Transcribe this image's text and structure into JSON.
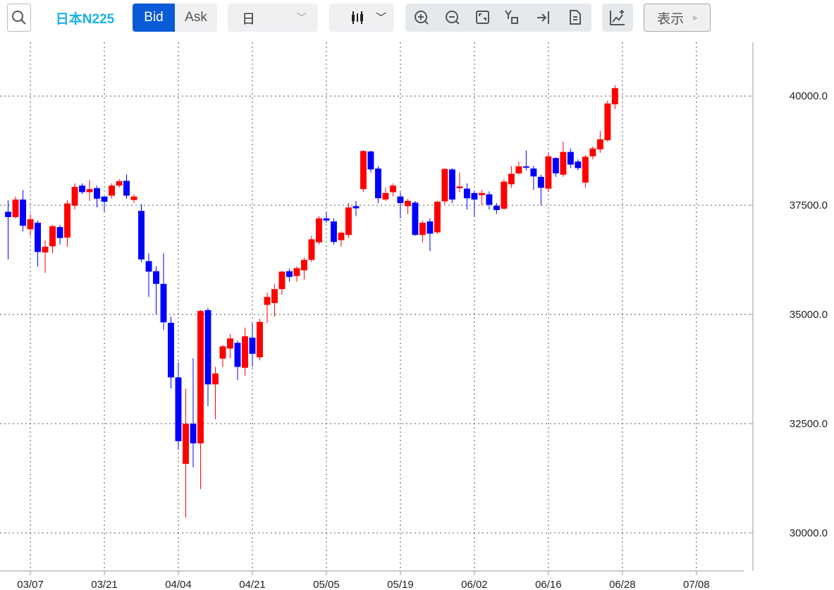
{
  "toolbar": {
    "symbol": "日本N225",
    "bid": "Bid",
    "ask": "Ask",
    "period": "日",
    "display": "表示"
  },
  "chart_data": {
    "type": "candlestick",
    "x": [
      0,
      1,
      2,
      3,
      4,
      5,
      6,
      7,
      8,
      9,
      10,
      11,
      12,
      13,
      14,
      15,
      16,
      17,
      18,
      19,
      20,
      21,
      22,
      23,
      24,
      25,
      26,
      27,
      28,
      29,
      30,
      31,
      32,
      33,
      34,
      35,
      36,
      37,
      38,
      39,
      40,
      41,
      42,
      43,
      44,
      45,
      46,
      47,
      48,
      49,
      50,
      51,
      52,
      53,
      54,
      55,
      56,
      57,
      58,
      59,
      60,
      61,
      62,
      63,
      64,
      65,
      66,
      67,
      68,
      69,
      70,
      71,
      72,
      73,
      74,
      75,
      76,
      77,
      78,
      79,
      80,
      81,
      82
    ],
    "open": [
      37350,
      37230,
      37630,
      36950,
      37100,
      36420,
      36560,
      37000,
      36760,
      37490,
      37950,
      37800,
      37890,
      37700,
      37720,
      37950,
      38060,
      37620,
      37370,
      36220,
      35990,
      35700,
      34810,
      33560,
      31580,
      32500,
      32050,
      35100,
      33400,
      33990,
      34220,
      34350,
      33780,
      34470,
      34020,
      35220,
      35260,
      35580,
      35990,
      35880,
      36010,
      36250,
      36650,
      37200,
      37130,
      36700,
      36820,
      37480,
      37870,
      38730,
      38340,
      37630,
      37800,
      37700,
      37480,
      37560,
      36820,
      37130,
      36880,
      37590,
      38320,
      37890,
      37880,
      37780,
      37730,
      37750,
      37490,
      37420,
      37980,
      38230,
      38390,
      38340,
      38150,
      37880,
      38580,
      38200,
      38720,
      38500,
      38020,
      38620,
      38780,
      38990,
      39810
    ],
    "high": [
      37610,
      37700,
      37850,
      37300,
      37150,
      36700,
      37050,
      37050,
      37620,
      38000,
      38000,
      38080,
      37950,
      37700,
      38000,
      38100,
      38200,
      37750,
      37520,
      36400,
      36100,
      36400,
      34950,
      33900,
      33300,
      34000,
      35100,
      35150,
      33800,
      34300,
      34550,
      34400,
      34700,
      34800,
      34900,
      35500,
      35700,
      36000,
      36050,
      36100,
      36300,
      36800,
      37250,
      37350,
      37200,
      36900,
      37550,
      37600,
      38760,
      38750,
      38400,
      37900,
      38000,
      37800,
      37650,
      37600,
      37150,
      37200,
      37600,
      38350,
      38350,
      38250,
      38000,
      37820,
      37850,
      37820,
      37550,
      38100,
      38400,
      38500,
      38750,
      38400,
      38200,
      38700,
      38600,
      38950,
      38800,
      38550,
      38650,
      38850,
      39200,
      39900,
      40250
    ],
    "low": [
      36260,
      37200,
      36900,
      36800,
      36100,
      35950,
      36400,
      36600,
      36550,
      37400,
      37750,
      37600,
      37450,
      37350,
      37650,
      37900,
      37650,
      37550,
      36200,
      35400,
      35000,
      34650,
      33300,
      31900,
      30350,
      31500,
      31000,
      32900,
      32600,
      33800,
      34000,
      33500,
      33600,
      33800,
      33950,
      34800,
      34950,
      35450,
      35750,
      35750,
      35800,
      36200,
      36600,
      37100,
      36600,
      36550,
      36750,
      37250,
      37800,
      38250,
      37550,
      37600,
      37700,
      37200,
      37300,
      36800,
      36650,
      36450,
      36850,
      37520,
      37550,
      37800,
      37400,
      37250,
      37500,
      37400,
      37300,
      37400,
      37900,
      38200,
      38300,
      37850,
      37500,
      37800,
      38150,
      38150,
      38350,
      38300,
      37900,
      38550,
      38700,
      38950,
      39700
    ],
    "close": [
      37230,
      37630,
      37030,
      37180,
      36430,
      36550,
      37020,
      36750,
      37540,
      37920,
      37800,
      37870,
      37650,
      37580,
      37950,
      38050,
      37720,
      37700,
      36260,
      35980,
      35700,
      34820,
      33560,
      32100,
      32500,
      32050,
      35080,
      33400,
      33650,
      34270,
      34450,
      33800,
      34500,
      34100,
      34830,
      35400,
      35580,
      35980,
      35860,
      36060,
      36250,
      36720,
      37200,
      37150,
      36660,
      36870,
      37450,
      37430,
      38740,
      38320,
      37660,
      37780,
      37950,
      37550,
      37600,
      36820,
      37100,
      36850,
      37580,
      38330,
      37630,
      37930,
      37660,
      37630,
      37780,
      37510,
      37390,
      38040,
      38220,
      38390,
      38360,
      38160,
      37900,
      38620,
      38230,
      38720,
      38430,
      38350,
      38610,
      38800,
      39010,
      39830,
      40180
    ],
    "up_color": "#ff0000",
    "down_color": "#0000ff",
    "xlim": [
      -1.1,
      99.4
    ],
    "xticks": [
      {
        "value": 3,
        "label": "03/07"
      },
      {
        "value": 13,
        "label": "03/21"
      },
      {
        "value": 23,
        "label": "04/04"
      },
      {
        "value": 33,
        "label": "04/21"
      },
      {
        "value": 43,
        "label": "05/05"
      },
      {
        "value": 53,
        "label": "05/19"
      },
      {
        "value": 63,
        "label": "06/02"
      },
      {
        "value": 73,
        "label": "06/16"
      },
      {
        "value": 83,
        "label": "06/28"
      },
      {
        "value": 93,
        "label": "07/08"
      }
    ],
    "ylim": [
      29290,
      41230
    ],
    "yticks": [
      {
        "value": 30000,
        "label": "30000.0"
      },
      {
        "value": 32500,
        "label": "32500.0"
      },
      {
        "value": 35000,
        "label": "35000.0"
      },
      {
        "value": 37500,
        "label": "37500.0"
      },
      {
        "value": 40000,
        "label": "40000.0"
      }
    ],
    "grid": true
  }
}
